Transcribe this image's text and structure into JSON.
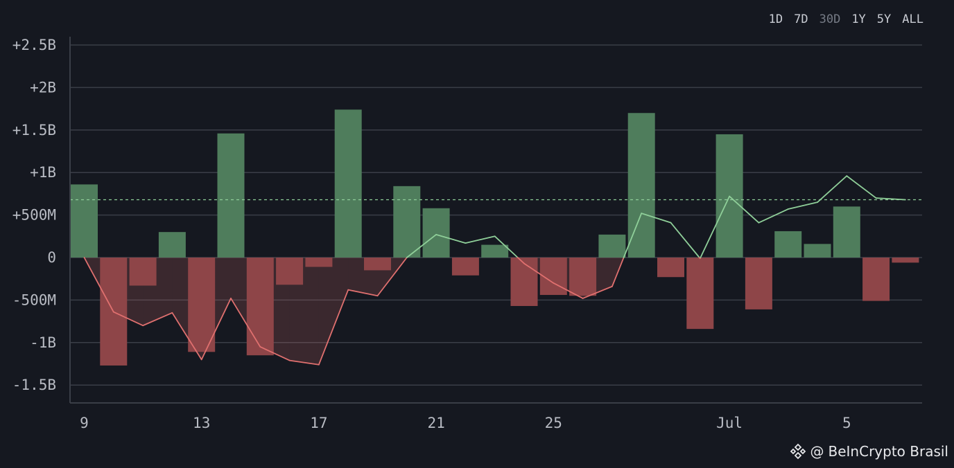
{
  "range_tabs": [
    "1D",
    "7D",
    "30D",
    "1Y",
    "5Y",
    "ALL"
  ],
  "active_range": "30D",
  "watermark": {
    "at": "@",
    "text": "BeInCrypto Brasil"
  },
  "colors": {
    "background": "#151820",
    "positive_bar": "#4f7d5c",
    "negative_bar": "#8e4548",
    "positive_line": "#8fcf99",
    "negative_line": "#e0706f",
    "grid": "#3a3e47",
    "axis_text": "#b9bcc4",
    "average_line": "#8fcf99"
  },
  "chart_data": {
    "type": "bar",
    "title": "",
    "xlabel": "",
    "ylabel": "",
    "ylim": [
      -1.72,
      2.5
    ],
    "y_ticks": [
      {
        "value": 2.5,
        "label": "+2.5B"
      },
      {
        "value": 2.0,
        "label": "+2B"
      },
      {
        "value": 1.5,
        "label": "+1.5B"
      },
      {
        "value": 1.0,
        "label": "+1B"
      },
      {
        "value": 0.5,
        "label": "+500M"
      },
      {
        "value": 0.0,
        "label": "0"
      },
      {
        "value": -0.5,
        "label": "-500M"
      },
      {
        "value": -1.0,
        "label": "-1B"
      },
      {
        "value": -1.5,
        "label": "-1.5B"
      }
    ],
    "x_ticks": [
      {
        "index": 0,
        "label": "9"
      },
      {
        "index": 4,
        "label": "13"
      },
      {
        "index": 8,
        "label": "17"
      },
      {
        "index": 12,
        "label": "21"
      },
      {
        "index": 16,
        "label": "25"
      },
      {
        "index": 22,
        "label": "Jul"
      },
      {
        "index": 26,
        "label": "5"
      }
    ],
    "grid": true,
    "average_line": 0.68,
    "series": [
      {
        "type": "bar",
        "values": [
          0.86,
          -1.27,
          -0.33,
          0.3,
          -1.11,
          1.46,
          -1.15,
          -0.32,
          -0.11,
          1.74,
          -0.15,
          0.84,
          0.58,
          -0.21,
          0.15,
          -0.57,
          -0.44,
          -0.45,
          0.27,
          1.7,
          -0.23,
          -0.84,
          1.45,
          -0.61,
          0.31,
          0.16,
          0.6,
          -0.51,
          -0.06
        ]
      },
      {
        "type": "line",
        "values": [
          0.0,
          -0.64,
          -0.8,
          -0.65,
          -1.2,
          -0.48,
          -1.05,
          -1.21,
          -1.26,
          -0.38,
          -0.45,
          0.0,
          0.27,
          0.17,
          0.25,
          -0.07,
          -0.3,
          -0.48,
          -0.34,
          0.52,
          0.41,
          -0.01,
          0.72,
          0.41,
          0.57,
          0.65,
          0.96,
          0.7,
          0.68
        ]
      }
    ]
  }
}
